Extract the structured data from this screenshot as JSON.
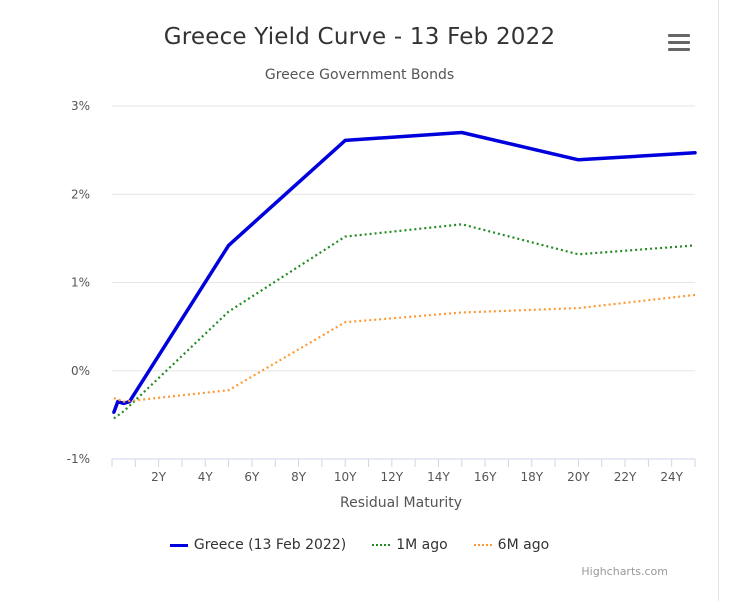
{
  "chart": {
    "title": "Greece Yield Curve - 13 Feb 2022",
    "subtitle": "Greece Government Bonds",
    "credits": "Highcharts.com"
  },
  "chart_data": {
    "type": "line",
    "title": "Greece Yield Curve - 13 Feb 2022",
    "subtitle": "Greece Government Bonds",
    "xlabel": "Residual Maturity",
    "ylabel": "",
    "xlim": [
      0,
      25
    ],
    "ylim": [
      -1,
      3
    ],
    "x_ticks": [
      "2Y",
      "4Y",
      "6Y",
      "8Y",
      "10Y",
      "12Y",
      "14Y",
      "16Y",
      "18Y",
      "20Y",
      "22Y",
      "24Y"
    ],
    "y_ticks": [
      "-1%",
      "0%",
      "1%",
      "2%",
      "3%"
    ],
    "grid": true,
    "legend_position": "bottom",
    "series": [
      {
        "name": "Greece (13 Feb 2022)",
        "color": "#0000dd",
        "style": "solid",
        "points": [
          [
            0.08,
            -0.47
          ],
          [
            0.25,
            -0.35
          ],
          [
            0.5,
            -0.37
          ],
          [
            0.75,
            -0.35
          ],
          [
            5,
            1.42
          ],
          [
            10,
            2.61
          ],
          [
            15,
            2.7
          ],
          [
            20,
            2.39
          ],
          [
            25,
            2.47
          ]
        ]
      },
      {
        "name": "1M ago",
        "color": "#228b22",
        "style": "dotted",
        "points": [
          [
            0.08,
            -0.54
          ],
          [
            0.5,
            -0.46
          ],
          [
            5,
            0.67
          ],
          [
            10,
            1.52
          ],
          [
            15,
            1.66
          ],
          [
            20,
            1.32
          ],
          [
            25,
            1.42
          ]
        ]
      },
      {
        "name": "6M ago",
        "color": "#ff9933",
        "style": "dotted",
        "points": [
          [
            0.08,
            -0.31
          ],
          [
            0.5,
            -0.35
          ],
          [
            5,
            -0.22
          ],
          [
            10,
            0.55
          ],
          [
            15,
            0.66
          ],
          [
            20,
            0.71
          ],
          [
            25,
            0.86
          ]
        ]
      }
    ]
  }
}
